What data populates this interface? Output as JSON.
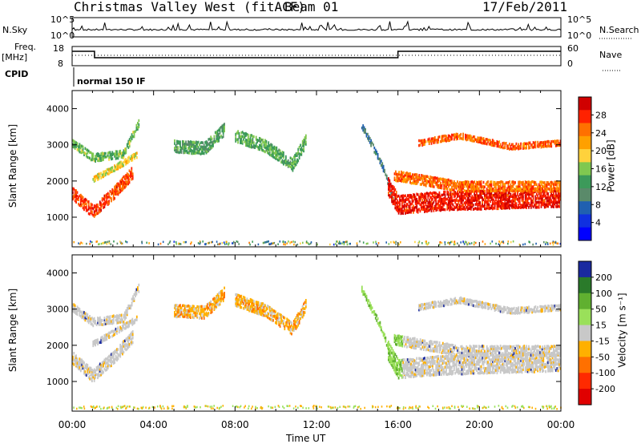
{
  "header": {
    "title": "Christmas Valley West (fitACF)",
    "beam": "Beam 01",
    "date": "17/Feb/2011"
  },
  "panels": {
    "nsky_label": "N.Sky",
    "nsearch_label": "N.Search",
    "freq_label_1": "Freq.",
    "freq_label_2": "[MHz]",
    "nave_label": "Nave",
    "cpid_label": "CPID",
    "mode_text": "normal 150 IF",
    "noise_left_ticks": [
      "10^5",
      "10^0"
    ],
    "noise_right_ticks": [
      "10^5",
      "10^0"
    ],
    "freq_ticks": [
      "18",
      "8"
    ],
    "nave_ticks": [
      "60",
      "0"
    ]
  },
  "chart_data": [
    {
      "type": "heatmap",
      "title": "",
      "xlabel": "Time UT",
      "ylabel": "Slant Range [km]",
      "colorbar_label": "Power [dB]",
      "colorbar_ticks": [
        "28",
        "24",
        "20",
        "16",
        "12",
        "8",
        "4"
      ],
      "colorbar_colors": [
        "#d00000",
        "#ff2200",
        "#ff7000",
        "#ffa000",
        "#ffd23c",
        "#80c850",
        "#3c9a5a",
        "#5a8a6a",
        "#2060b0",
        "#1030e0",
        "#0000ff"
      ],
      "x_ticks": [
        "00:00",
        "04:00",
        "08:00",
        "12:00",
        "16:00",
        "20:00",
        "00:00"
      ],
      "y_ticks": [
        1000,
        2000,
        3000,
        4000
      ],
      "ylim": [
        180,
        4500
      ],
      "xlim_hours": [
        0,
        24
      ],
      "bands": [
        {
          "t": [
            0.0,
            1.0,
            2.0,
            3.0
          ],
          "r": [
            1700,
            1200,
            1700,
            2300
          ],
          "w": 350,
          "level": 26
        },
        {
          "t": [
            0.0,
            1.0,
            2.5,
            3.3
          ],
          "r": [
            3100,
            2700,
            2800,
            3700
          ],
          "w": 250,
          "level": 14
        },
        {
          "t": [
            1.0,
            2.0,
            3.2
          ],
          "r": [
            2100,
            2400,
            2800
          ],
          "w": 200,
          "level": 18
        },
        {
          "t": [
            5.0,
            6.5,
            7.5
          ],
          "r": [
            3000,
            2950,
            3500
          ],
          "w": 350,
          "level": 12
        },
        {
          "t": [
            8.0,
            9.5,
            10.8,
            11.5
          ],
          "r": [
            3300,
            3000,
            2500,
            3200
          ],
          "w": 350,
          "level": 13
        },
        {
          "t": [
            14.2,
            15.2,
            15.9
          ],
          "r": [
            3600,
            2500,
            1300
          ],
          "w": 200,
          "level": 8
        },
        {
          "t": [
            15.5,
            16.0,
            18.0,
            24.0
          ],
          "r": [
            1900,
            1400,
            1500,
            1600
          ],
          "w": 550,
          "level": 28
        },
        {
          "t": [
            15.8,
            19.0,
            24.0
          ],
          "r": [
            2200,
            1900,
            1900
          ],
          "w": 300,
          "level": 24
        },
        {
          "t": [
            17.0,
            19.0,
            21.5,
            24.0
          ],
          "r": [
            3100,
            3300,
            3000,
            3100
          ],
          "w": 180,
          "level": 25
        }
      ]
    },
    {
      "type": "heatmap",
      "title": "",
      "xlabel": "Time UT",
      "ylabel": "Slant Range [km]",
      "colorbar_label": "Velocity [m s⁻¹]",
      "colorbar_ticks": [
        "200",
        "100",
        "50",
        "15",
        "-15",
        "-50",
        "-100",
        "-200"
      ],
      "colorbar_colors": [
        "#1a2aa0",
        "#2a7a2a",
        "#60b030",
        "#9ae05a",
        "#c8c8c8",
        "#ffb000",
        "#ff7000",
        "#ff2a00",
        "#e00000"
      ],
      "x_ticks": [
        "00:00",
        "04:00",
        "08:00",
        "12:00",
        "16:00",
        "20:00",
        "00:00"
      ],
      "y_ticks": [
        1000,
        2000,
        3000,
        4000
      ],
      "ylim": [
        180,
        4500
      ],
      "xlim_hours": [
        0,
        24
      ]
    }
  ],
  "colors": {
    "ground": "#c8c8c8",
    "grid": "#d8d8d8"
  }
}
